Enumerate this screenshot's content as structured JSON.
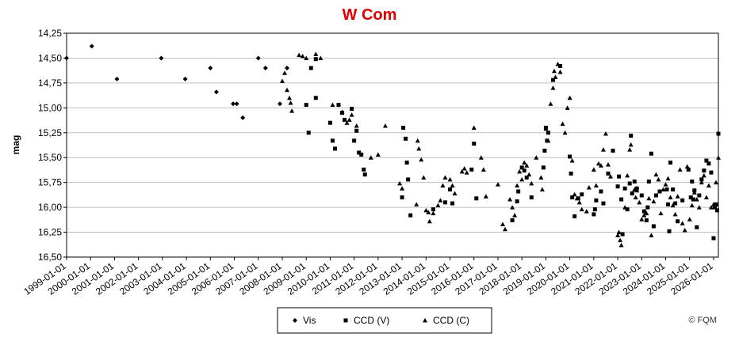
{
  "chart_data": {
    "type": "scatter",
    "title": "W Com",
    "xlabel": "",
    "ylabel": "mag",
    "y_inverted": true,
    "ylim": [
      14.25,
      16.5
    ],
    "yticks": [
      "14,25",
      "14,50",
      "14,75",
      "15,00",
      "15,25",
      "15,50",
      "15,75",
      "16,00",
      "16,25",
      "16,50"
    ],
    "xlim": [
      1999.0,
      2026.2
    ],
    "xticks": [
      "1999-01-01",
      "2000-01-01",
      "2001-01-01",
      "2002-01-01",
      "2003-01-01",
      "2004-01-01",
      "2005-01-01",
      "2006-01-01",
      "2007-01-01",
      "2008-01-01",
      "2009-01-01",
      "2010-01-01",
      "2011-01-01",
      "2012-01-01",
      "2013-01-01",
      "2014-01-01",
      "2015-01-01",
      "2016-01-01",
      "2017-01-01",
      "2018-01-01",
      "2019-01-01",
      "2020-01-01",
      "2021-01-01",
      "2022-01-01",
      "2023-01-01",
      "2024-01-01",
      "2025-01-01",
      "2026-01-01"
    ],
    "grid": "horizontal",
    "legend_position": "bottom",
    "series": [
      {
        "name": "Vis",
        "marker": "diamond",
        "color": "#000000",
        "points": [
          [
            1999.0,
            14.5
          ],
          [
            2000.05,
            14.38
          ],
          [
            2001.1,
            14.71
          ],
          [
            2002.95,
            14.5
          ],
          [
            2003.95,
            14.71
          ],
          [
            2005.0,
            14.6
          ],
          [
            2005.25,
            14.84
          ],
          [
            2005.95,
            14.96
          ],
          [
            2006.1,
            14.96
          ],
          [
            2006.35,
            15.1
          ],
          [
            2007.0,
            14.5
          ],
          [
            2007.3,
            14.6
          ],
          [
            2007.9,
            14.96
          ],
          [
            2008.2,
            14.6
          ]
        ]
      },
      {
        "name": "CCD (V)",
        "marker": "square",
        "color": "#000000",
        "points": [
          [
            2009.0,
            14.97
          ],
          [
            2009.1,
            15.25
          ],
          [
            2009.2,
            14.6
          ],
          [
            2009.4,
            14.51
          ],
          [
            2009.4,
            14.9
          ],
          [
            2010.0,
            15.15
          ],
          [
            2010.1,
            15.33
          ],
          [
            2010.2,
            15.41
          ],
          [
            2010.35,
            14.97
          ],
          [
            2010.5,
            15.05
          ],
          [
            2010.6,
            15.12
          ],
          [
            2010.9,
            15.01
          ],
          [
            2011.0,
            15.33
          ],
          [
            2011.1,
            15.23
          ],
          [
            2011.2,
            15.45
          ],
          [
            2011.3,
            15.47
          ],
          [
            2011.4,
            15.62
          ],
          [
            2011.45,
            15.67
          ],
          [
            2013.0,
            15.9
          ],
          [
            2013.05,
            15.2
          ],
          [
            2013.15,
            15.31
          ],
          [
            2013.2,
            15.55
          ],
          [
            2013.25,
            15.72
          ],
          [
            2013.35,
            16.08
          ],
          [
            2014.3,
            16.02
          ],
          [
            2014.8,
            15.95
          ],
          [
            2015.0,
            15.82
          ],
          [
            2015.1,
            15.96
          ],
          [
            2015.9,
            15.62
          ],
          [
            2016.0,
            15.36
          ],
          [
            2016.1,
            15.91
          ],
          [
            2017.6,
            16.13
          ],
          [
            2017.8,
            15.94
          ],
          [
            2017.85,
            15.84
          ],
          [
            2018.0,
            15.6
          ],
          [
            2018.1,
            15.63
          ],
          [
            2018.2,
            15.7
          ],
          [
            2018.4,
            15.9
          ],
          [
            2018.9,
            15.6
          ],
          [
            2018.95,
            15.43
          ],
          [
            2019.0,
            15.2
          ],
          [
            2019.05,
            15.33
          ],
          [
            2019.1,
            15.25
          ],
          [
            2019.3,
            14.72
          ],
          [
            2019.6,
            14.58
          ],
          [
            2020.0,
            15.49
          ],
          [
            2020.05,
            15.66
          ],
          [
            2020.1,
            15.9
          ],
          [
            2020.2,
            16.09
          ],
          [
            2020.35,
            15.91
          ],
          [
            2020.5,
            15.87
          ],
          [
            2021.0,
            16.07
          ],
          [
            2021.05,
            16.02
          ],
          [
            2021.1,
            15.93
          ],
          [
            2021.3,
            15.84
          ],
          [
            2021.4,
            15.96
          ],
          [
            2021.6,
            15.66
          ],
          [
            2021.8,
            15.43
          ],
          [
            2022.0,
            15.79
          ],
          [
            2022.05,
            15.69
          ],
          [
            2022.15,
            15.92
          ],
          [
            2022.2,
            16.27
          ],
          [
            2022.3,
            15.81
          ],
          [
            2022.4,
            16.02
          ],
          [
            2022.5,
            15.76
          ],
          [
            2022.55,
            15.28
          ],
          [
            2022.6,
            15.86
          ],
          [
            2022.7,
            15.74
          ],
          [
            2022.8,
            15.81
          ],
          [
            2023.0,
            15.88
          ],
          [
            2023.1,
            16.04
          ],
          [
            2023.2,
            16.13
          ],
          [
            2023.25,
            16.0
          ],
          [
            2023.3,
            15.74
          ],
          [
            2023.4,
            15.46
          ],
          [
            2023.5,
            16.19
          ],
          [
            2023.6,
            15.88
          ],
          [
            2023.75,
            15.84
          ],
          [
            2024.05,
            15.82
          ],
          [
            2024.1,
            15.97
          ],
          [
            2024.15,
            16.24
          ],
          [
            2024.2,
            15.55
          ],
          [
            2024.3,
            15.82
          ],
          [
            2024.4,
            15.96
          ],
          [
            2024.5,
            16.14
          ],
          [
            2024.7,
            15.93
          ],
          [
            2024.95,
            15.62
          ],
          [
            2025.05,
            15.9
          ],
          [
            2025.1,
            15.74
          ],
          [
            2025.15,
            15.92
          ],
          [
            2025.2,
            15.83
          ],
          [
            2025.3,
            16.2
          ],
          [
            2025.4,
            15.88
          ],
          [
            2025.5,
            15.72
          ],
          [
            2025.6,
            15.63
          ],
          [
            2025.7,
            15.53
          ],
          [
            2025.8,
            15.56
          ],
          [
            2025.9,
            15.65
          ],
          [
            2026.0,
            16.31
          ],
          [
            2026.05,
            16.0
          ],
          [
            2026.1,
            15.97
          ],
          [
            2026.15,
            16.03
          ],
          [
            2026.2,
            15.26
          ]
        ]
      },
      {
        "name": "CCD (C)",
        "marker": "triangle",
        "color": "#000000",
        "points": [
          [
            2008.0,
            14.73
          ],
          [
            2008.1,
            14.65
          ],
          [
            2008.2,
            14.82
          ],
          [
            2008.3,
            14.9
          ],
          [
            2008.35,
            14.95
          ],
          [
            2008.4,
            15.03
          ],
          [
            2008.7,
            14.47
          ],
          [
            2008.85,
            14.48
          ],
          [
            2009.0,
            14.5
          ],
          [
            2009.4,
            14.46
          ],
          [
            2009.6,
            14.5
          ],
          [
            2010.1,
            14.97
          ],
          [
            2010.5,
            15.04
          ],
          [
            2010.7,
            15.15
          ],
          [
            2010.8,
            15.12
          ],
          [
            2010.9,
            15.07
          ],
          [
            2011.1,
            15.18
          ],
          [
            2011.7,
            15.5
          ],
          [
            2012.0,
            15.47
          ],
          [
            2012.3,
            15.18
          ],
          [
            2012.9,
            15.76
          ],
          [
            2013.0,
            15.81
          ],
          [
            2013.6,
            15.97
          ],
          [
            2013.65,
            15.33
          ],
          [
            2013.7,
            15.41
          ],
          [
            2013.8,
            15.52
          ],
          [
            2013.9,
            15.7
          ],
          [
            2014.0,
            16.03
          ],
          [
            2014.1,
            16.05
          ],
          [
            2014.15,
            16.14
          ],
          [
            2014.3,
            16.06
          ],
          [
            2014.5,
            15.98
          ],
          [
            2014.6,
            15.93
          ],
          [
            2014.7,
            15.78
          ],
          [
            2014.8,
            15.7
          ],
          [
            2015.0,
            15.72
          ],
          [
            2015.1,
            15.78
          ],
          [
            2015.2,
            15.86
          ],
          [
            2015.5,
            15.64
          ],
          [
            2015.6,
            15.61
          ],
          [
            2015.7,
            15.65
          ],
          [
            2016.0,
            15.2
          ],
          [
            2016.3,
            15.5
          ],
          [
            2016.4,
            15.62
          ],
          [
            2016.5,
            15.89
          ],
          [
            2017.0,
            15.77
          ],
          [
            2017.2,
            16.17
          ],
          [
            2017.3,
            16.22
          ],
          [
            2017.5,
            15.92
          ],
          [
            2017.6,
            16.0
          ],
          [
            2017.7,
            16.08
          ],
          [
            2017.8,
            15.78
          ],
          [
            2017.9,
            15.64
          ],
          [
            2018.0,
            15.72
          ],
          [
            2018.1,
            15.55
          ],
          [
            2018.2,
            15.58
          ],
          [
            2018.3,
            15.67
          ],
          [
            2018.4,
            15.76
          ],
          [
            2018.6,
            15.5
          ],
          [
            2018.8,
            15.7
          ],
          [
            2018.85,
            15.82
          ],
          [
            2019.0,
            15.21
          ],
          [
            2019.1,
            15.33
          ],
          [
            2019.2,
            14.96
          ],
          [
            2019.3,
            14.8
          ],
          [
            2019.35,
            14.63
          ],
          [
            2019.4,
            14.69
          ],
          [
            2019.5,
            14.56
          ],
          [
            2019.6,
            14.64
          ],
          [
            2019.7,
            15.16
          ],
          [
            2019.8,
            15.25
          ],
          [
            2019.9,
            15.0
          ],
          [
            2020.0,
            14.9
          ],
          [
            2020.1,
            15.53
          ],
          [
            2020.2,
            15.87
          ],
          [
            2020.3,
            15.91
          ],
          [
            2020.4,
            15.95
          ],
          [
            2020.5,
            16.02
          ],
          [
            2020.7,
            16.04
          ],
          [
            2020.8,
            15.8
          ],
          [
            2021.0,
            15.62
          ],
          [
            2021.1,
            15.78
          ],
          [
            2021.2,
            15.56
          ],
          [
            2021.3,
            15.58
          ],
          [
            2021.4,
            15.42
          ],
          [
            2021.5,
            15.26
          ],
          [
            2021.6,
            15.57
          ],
          [
            2021.7,
            15.69
          ],
          [
            2022.0,
            16.28
          ],
          [
            2022.05,
            16.25
          ],
          [
            2022.1,
            16.33
          ],
          [
            2022.15,
            16.38
          ],
          [
            2022.3,
            16.0
          ],
          [
            2022.4,
            15.68
          ],
          [
            2022.5,
            15.42
          ],
          [
            2022.55,
            15.37
          ],
          [
            2022.7,
            15.82
          ],
          [
            2022.75,
            15.9
          ],
          [
            2022.8,
            15.83
          ],
          [
            2022.9,
            15.95
          ],
          [
            2023.0,
            16.12
          ],
          [
            2023.1,
            16.08
          ],
          [
            2023.2,
            16.06
          ],
          [
            2023.3,
            15.91
          ],
          [
            2023.4,
            16.28
          ],
          [
            2023.5,
            15.94
          ],
          [
            2023.6,
            15.67
          ],
          [
            2023.7,
            15.72
          ],
          [
            2023.8,
            16.06
          ],
          [
            2023.9,
            15.82
          ],
          [
            2024.0,
            15.77
          ],
          [
            2024.1,
            15.71
          ],
          [
            2024.2,
            15.9
          ],
          [
            2024.3,
            15.98
          ],
          [
            2024.4,
            16.07
          ],
          [
            2024.5,
            15.89
          ],
          [
            2024.6,
            15.62
          ],
          [
            2024.7,
            16.16
          ],
          [
            2024.8,
            16.23
          ],
          [
            2024.9,
            15.59
          ],
          [
            2025.0,
            16.12
          ],
          [
            2025.1,
            15.98
          ],
          [
            2025.2,
            15.85
          ],
          [
            2025.3,
            15.92
          ],
          [
            2025.4,
            16.0
          ],
          [
            2025.5,
            15.75
          ],
          [
            2025.6,
            15.68
          ],
          [
            2025.7,
            15.9
          ],
          [
            2025.8,
            15.78
          ],
          [
            2025.9,
            16.0
          ],
          [
            2026.0,
            15.97
          ],
          [
            2026.1,
            15.75
          ],
          [
            2026.2,
            15.5
          ]
        ]
      }
    ]
  },
  "copyright": "© FQM"
}
